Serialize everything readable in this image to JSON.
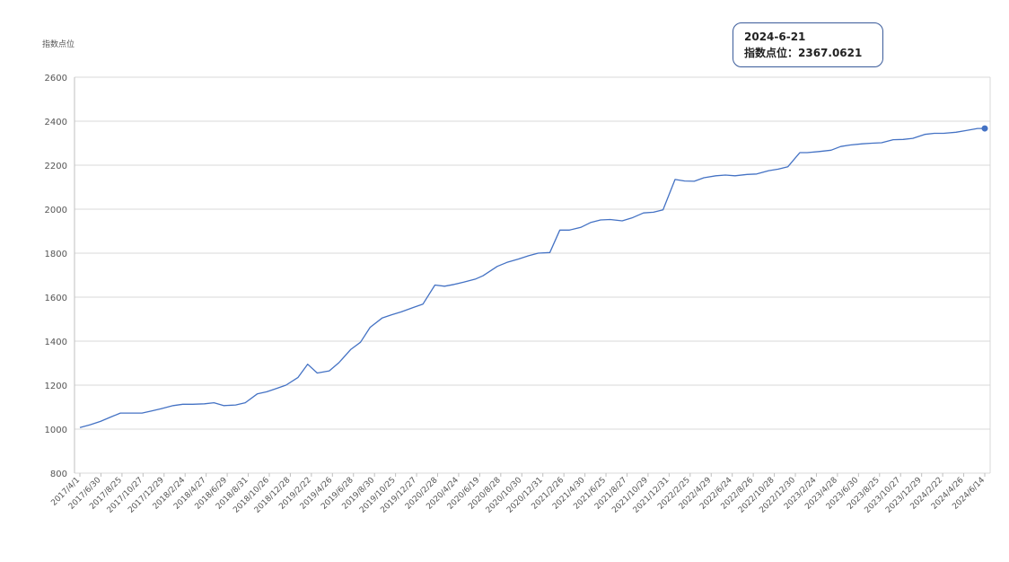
{
  "chart_data": {
    "type": "line",
    "ylabel": "指数点位",
    "ylim": [
      800,
      2600
    ],
    "yticks": [
      800,
      1000,
      1200,
      1400,
      1600,
      1800,
      2000,
      2200,
      2400,
      2600
    ],
    "grid": true,
    "line_color": "#4472c4",
    "tick_labels": [
      "2017/4/1",
      "2017/6/30",
      "2017/8/25",
      "2017/10/27",
      "2017/12/29",
      "2018/2/24",
      "2018/4/27",
      "2018/6/29",
      "2018/8/31",
      "2018/10/26",
      "2018/12/28",
      "2019/2/22",
      "2019/4/26",
      "2019/6/28",
      "2019/8/30",
      "2019/10/25",
      "2019/12/27",
      "2020/2/28",
      "2020/4/24",
      "2020/6/19",
      "2020/8/28",
      "2020/10/30",
      "2020/12/31",
      "2021/2/26",
      "2021/4/30",
      "2021/6/25",
      "2021/8/27",
      "2021/10/29",
      "2021/12/31",
      "2022/2/25",
      "2022/4/29",
      "2022/6/24",
      "2022/8/26",
      "2022/10/28",
      "2022/12/30",
      "2023/2/24",
      "2023/4/28",
      "2023/6/30",
      "2023/8/25",
      "2023/10/27",
      "2023/12/29",
      "2024/2/22",
      "2024/4/26",
      "2024/6/14"
    ],
    "series": [
      {
        "x": [
          "2017/4/1",
          "2017/5/1",
          "2017/5/31",
          "2017/6/30",
          "2017/7/28",
          "2017/8/25",
          "2017/9/29",
          "2017/10/27",
          "2017/11/24",
          "2017/12/29",
          "2018/1/26",
          "2018/2/24",
          "2018/3/30",
          "2018/4/27",
          "2018/5/25",
          "2018/6/29",
          "2018/7/27",
          "2018/8/31",
          "2018/9/28",
          "2018/10/26",
          "2018/11/23",
          "2018/12/28",
          "2019/1/25",
          "2019/2/22",
          "2019/3/29",
          "2019/4/26",
          "2019/5/31",
          "2019/6/28",
          "2019/7/26",
          "2019/8/30",
          "2019/9/27",
          "2019/10/25",
          "2019/11/29",
          "2019/12/27",
          "2020/1/31",
          "2020/2/28",
          "2020/3/27",
          "2020/4/24",
          "2020/5/29",
          "2020/6/19",
          "2020/7/31",
          "2020/8/28",
          "2020/9/30",
          "2020/10/30",
          "2020/11/27",
          "2020/12/31",
          "2021/1/29",
          "2021/2/26",
          "2021/3/31",
          "2021/4/30",
          "2021/5/28",
          "2021/6/25",
          "2021/7/30",
          "2021/8/27",
          "2021/9/30",
          "2021/10/29",
          "2021/11/26",
          "2021/12/31",
          "2022/1/28",
          "2022/2/25",
          "2022/3/25",
          "2022/4/29",
          "2022/5/27",
          "2022/6/24",
          "2022/7/29",
          "2022/8/26",
          "2022/9/30",
          "2022/10/28",
          "2022/11/25",
          "2022/12/30",
          "2023/1/20",
          "2023/2/24",
          "2023/3/31",
          "2023/4/28",
          "2023/5/26",
          "2023/6/30",
          "2023/7/28",
          "2023/8/25",
          "2023/9/28",
          "2023/10/27",
          "2023/11/24",
          "2023/12/29",
          "2024/1/26",
          "2024/2/22",
          "2024/3/29",
          "2024/4/26",
          "2024/5/31",
          "2024/6/21"
        ],
        "values": [
          1007,
          1020,
          1035,
          1055,
          1073,
          1073,
          1073,
          1083,
          1093,
          1107,
          1113,
          1113,
          1115,
          1120,
          1107,
          1110,
          1120,
          1160,
          1170,
          1185,
          1200,
          1235,
          1295,
          1255,
          1265,
          1302,
          1363,
          1395,
          1463,
          1505,
          1520,
          1533,
          1553,
          1568,
          1655,
          1650,
          1658,
          1668,
          1683,
          1697,
          1740,
          1758,
          1773,
          1788,
          1800,
          1803,
          1905,
          1905,
          1917,
          1940,
          1951,
          1953,
          1947,
          1960,
          1983,
          1986,
          1997,
          2135,
          2128,
          2127,
          2143,
          2152,
          2155,
          2152,
          2158,
          2160,
          2175,
          2182,
          2193,
          2257,
          2257,
          2262,
          2268,
          2285,
          2292,
          2297,
          2300,
          2302,
          2316,
          2317,
          2322,
          2340,
          2345,
          2345,
          2350,
          2357,
          2367,
          2367.0621
        ]
      }
    ],
    "tooltip": {
      "date": "2024-6-21",
      "text": "指数点位：2367.0621"
    }
  }
}
